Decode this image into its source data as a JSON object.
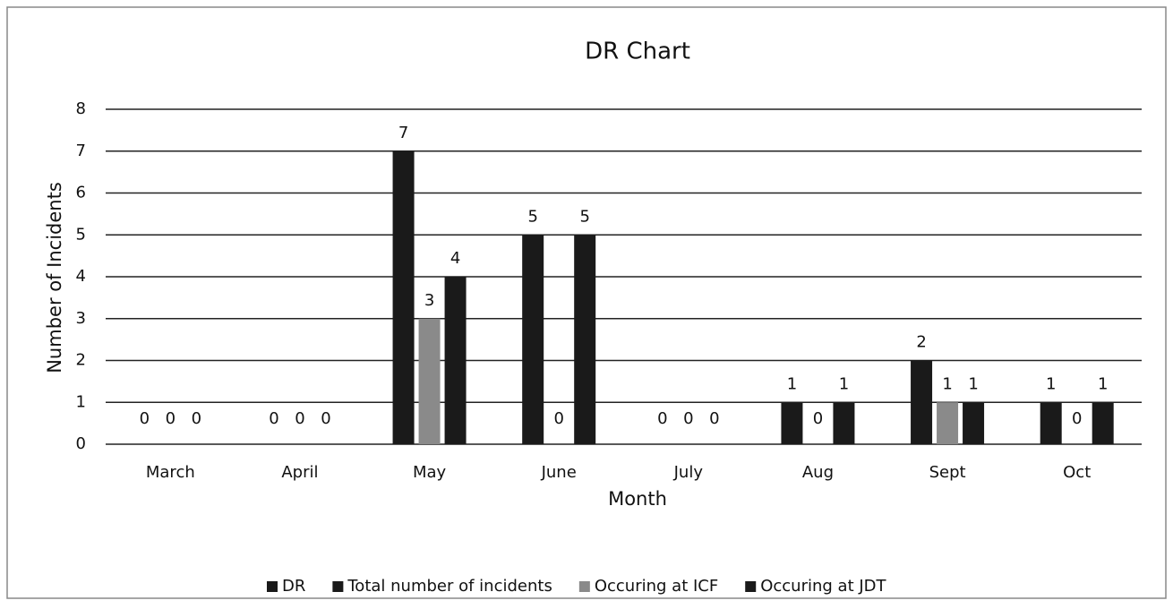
{
  "chart_data": {
    "type": "bar",
    "title": "DR Chart",
    "x_label": "Month",
    "y_label": "Number of Incidents",
    "categories": [
      "March",
      "April",
      "May",
      "June",
      "July",
      "Aug",
      "Sept",
      "Oct"
    ],
    "series": [
      {
        "name": "DR",
        "color": "#1a1a1a",
        "values": [
          null,
          null,
          null,
          null,
          null,
          null,
          null,
          null
        ]
      },
      {
        "name": "Total number of incidents",
        "color": "#1a1a1a",
        "values": [
          0,
          0,
          7,
          5,
          0,
          1,
          2,
          1
        ]
      },
      {
        "name": "Occuring at ICF",
        "color": "#8a8a8a",
        "values": [
          0,
          0,
          3,
          0,
          0,
          0,
          1,
          0
        ]
      },
      {
        "name": "Occuring at JDT",
        "color": "#1a1a1a",
        "values": [
          0,
          0,
          4,
          5,
          0,
          1,
          1,
          1
        ]
      }
    ],
    "ylim": [
      0,
      8
    ],
    "yticks": [
      0,
      1,
      2,
      3,
      4,
      5,
      6,
      7,
      8
    ],
    "grid": true,
    "legend": "bottom"
  }
}
